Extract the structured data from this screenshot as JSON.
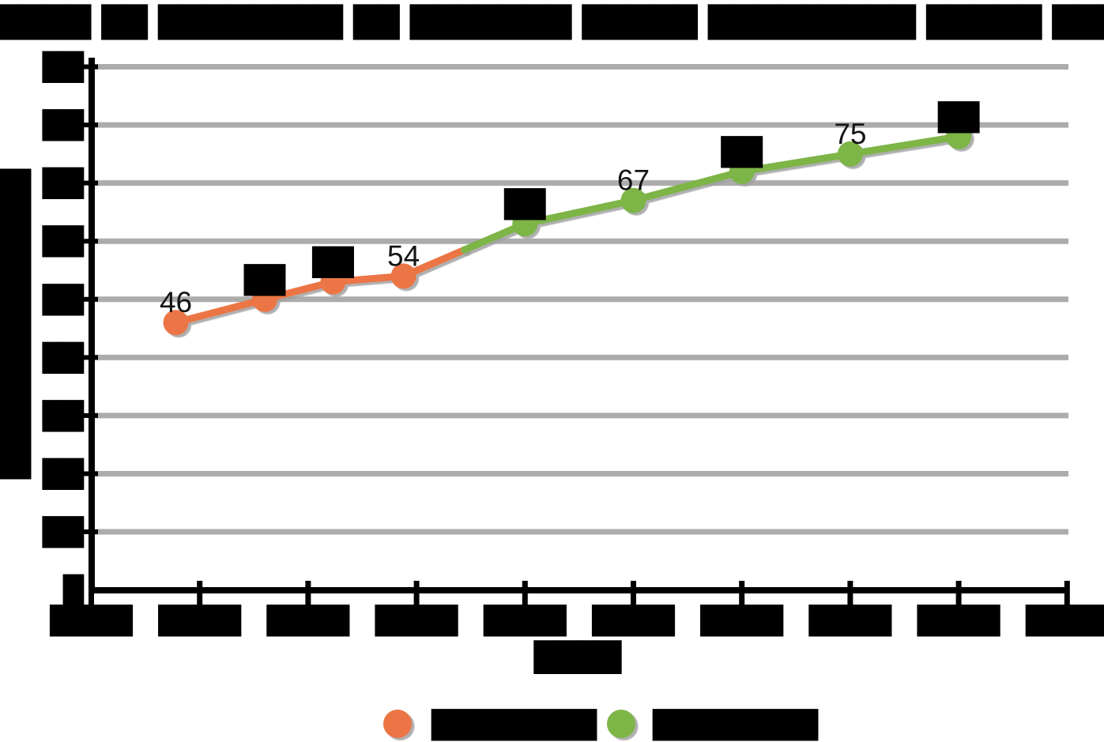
{
  "chart_data": {
    "type": "line",
    "title": "███████ ██ ████████ ██ ███████ █████ █████████ █████ ███ ████",
    "title_redacted": true,
    "x_axis_title": "████",
    "y_axis_title": "███████████████",
    "x_unit": "tick-index",
    "x_tick_labels": [
      "████",
      "████",
      "████",
      "████",
      "████",
      "████",
      "████",
      "████",
      "████",
      "████"
    ],
    "y_ticks": [
      {
        "value": 0,
        "label": "█"
      },
      {
        "value": 10,
        "label": "██"
      },
      {
        "value": 20,
        "label": "██"
      },
      {
        "value": 30,
        "label": "██"
      },
      {
        "value": 40,
        "label": "██"
      },
      {
        "value": 50,
        "label": "██"
      },
      {
        "value": 60,
        "label": "██"
      },
      {
        "value": 70,
        "label": "██"
      },
      {
        "value": 80,
        "label": "██"
      },
      {
        "value": 90,
        "label": "██"
      }
    ],
    "ylim": [
      0,
      92
    ],
    "grid": "horizontal-only",
    "legend_position": "bottom-center",
    "colors": {
      "observed": "#EC7444",
      "projected": "#7DB547",
      "gridline": "#ACACAC",
      "shadow": "#A0A0A0",
      "axis": "#000000"
    },
    "series": [
      {
        "name": "████████",
        "color": "#EC7444",
        "points": [
          {
            "x": 0.78,
            "y": 46,
            "label": "46"
          },
          {
            "x": 1.6,
            "y": 50,
            "label": "██"
          },
          {
            "x": 2.23,
            "y": 53,
            "label": "██"
          },
          {
            "x": 2.88,
            "y": 54,
            "label": "54"
          }
        ]
      },
      {
        "name": "████████",
        "color": "#7DB547",
        "points": [
          {
            "x": 4,
            "y": 63,
            "label": "██"
          },
          {
            "x": 5,
            "y": 67,
            "label": "67"
          },
          {
            "x": 6,
            "y": 72,
            "label": "██"
          },
          {
            "x": 7,
            "y": 75,
            "label": "75"
          },
          {
            "x": 8,
            "y": 78,
            "label": "██"
          }
        ]
      }
    ]
  }
}
